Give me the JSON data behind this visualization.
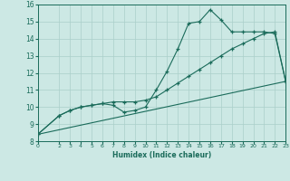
{
  "xlabel": "Humidex (Indice chaleur)",
  "bg_color": "#cce8e4",
  "line_color": "#1a6b5a",
  "grid_color": "#aacfca",
  "xlim": [
    0,
    23
  ],
  "ylim": [
    8,
    16
  ],
  "xticks": [
    0,
    2,
    3,
    4,
    5,
    6,
    7,
    8,
    9,
    10,
    11,
    12,
    13,
    14,
    15,
    16,
    17,
    18,
    19,
    20,
    21,
    22,
    23
  ],
  "yticks": [
    8,
    9,
    10,
    11,
    12,
    13,
    14,
    15,
    16
  ],
  "line1_x": [
    0,
    2,
    3,
    4,
    5,
    6,
    7,
    8,
    9,
    10,
    11,
    12,
    13,
    14,
    15,
    16,
    17,
    18,
    19,
    20,
    21,
    22,
    23
  ],
  "line1_y": [
    8.4,
    9.5,
    9.8,
    10.0,
    10.1,
    10.2,
    10.1,
    9.7,
    9.8,
    10.0,
    11.0,
    12.1,
    13.4,
    14.9,
    15.0,
    15.7,
    15.1,
    14.4,
    14.4,
    14.4,
    14.4,
    14.3,
    11.5
  ],
  "line2_x": [
    0,
    2,
    3,
    4,
    5,
    6,
    7,
    8,
    9,
    10,
    11,
    12,
    13,
    14,
    15,
    16,
    17,
    18,
    19,
    20,
    21,
    22,
    23
  ],
  "line2_y": [
    8.4,
    9.5,
    9.8,
    10.0,
    10.1,
    10.2,
    10.3,
    10.3,
    10.3,
    10.4,
    10.6,
    11.0,
    11.4,
    11.8,
    12.2,
    12.6,
    13.0,
    13.4,
    13.7,
    14.0,
    14.3,
    14.4,
    11.5
  ],
  "line3_x": [
    0,
    23
  ],
  "line3_y": [
    8.4,
    11.5
  ]
}
